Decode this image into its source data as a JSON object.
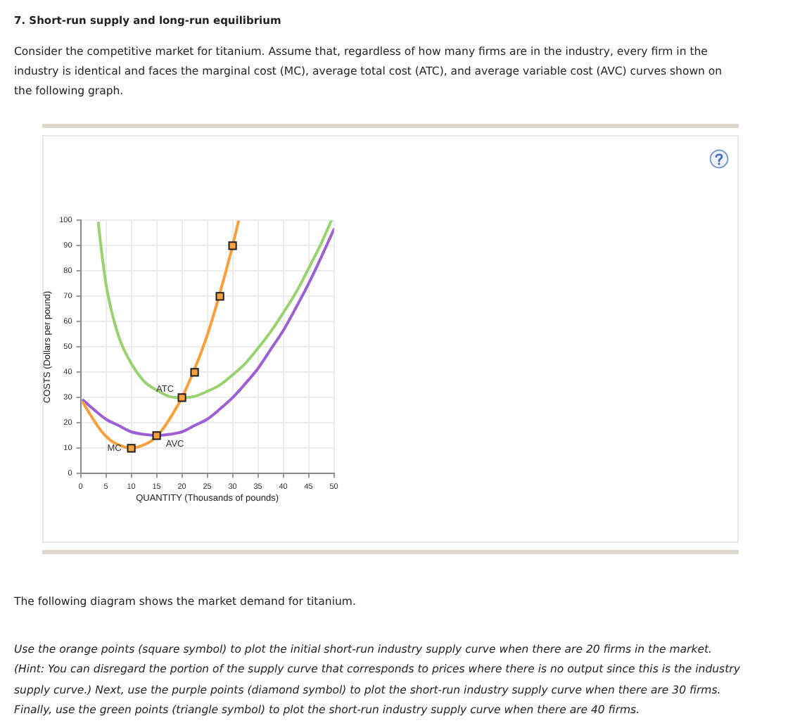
{
  "chart_data": {
    "type": "line",
    "title": "7. Short-run supply and long-run equilibrium",
    "subtitle": "Consider the competitive market for titanium. Assume that, regardless of how many firms are in the industry, every firm in the industry is identical and faces the marginal cost (MC), average total cost (ATC), and average variable cost (AVC) curves shown on the following graph.",
    "xlabel": "QUANTITY (Thousands of pounds)",
    "ylabel": "COSTS (Dollars per pound)",
    "annotations": [
      "The following diagram shows the market demand for titanium.",
      "Use the orange points (square symbol) to plot the initial short-run industry supply curve when there are 20 firms in the market. (Hint: You can disregard the portion of the supply curve that corresponds to prices where there is no output since this is the industry supply curve.) Next, use the purple points (diamond symbol) to plot the short-run industry supply curve when there are 30 firms. Finally, use the green points (triangle symbol) to plot the short-run industry supply curve when there are 40 firms."
    ],
    "xlim": [
      0,
      50
    ],
    "ylim": [
      0,
      100
    ],
    "xticks": [
      0,
      5,
      10,
      15,
      20,
      25,
      30,
      35,
      40,
      45,
      50
    ],
    "yticks": [
      0,
      10,
      20,
      30,
      40,
      50,
      60,
      70,
      80,
      90,
      100
    ],
    "grid": true,
    "series": [
      {
        "name": "ATC",
        "color": "#99d36f",
        "x": [
          3.5,
          4,
          5,
          6,
          7,
          8,
          10,
          12.5,
          15,
          17.5,
          20,
          22.5,
          25,
          27.5,
          30,
          32.5,
          35,
          37.5,
          40,
          42.5,
          45,
          47.5,
          49.5
        ],
        "values": [
          99,
          90,
          75,
          65,
          57.5,
          51.5,
          43.5,
          36.5,
          33,
          30.5,
          30,
          30.5,
          32.5,
          35,
          39,
          43.5,
          49.5,
          56,
          63.5,
          71.5,
          81,
          91,
          100
        ]
      },
      {
        "name": "AVC",
        "color": "#9c5fd6",
        "x": [
          0.5,
          2.5,
          5,
          7.5,
          10,
          12.5,
          15,
          17.5,
          20,
          22.5,
          25,
          27.5,
          30,
          32.5,
          35,
          37.5,
          40,
          42.5,
          45,
          47.5,
          50
        ],
        "values": [
          29,
          25.5,
          21.5,
          19,
          16.5,
          15.5,
          15,
          15.5,
          16.5,
          19,
          21.5,
          25.5,
          30,
          35.5,
          41.5,
          49,
          56.5,
          65.5,
          75,
          85.5,
          96.5
        ]
      },
      {
        "name": "MC",
        "color": "#f7a03c",
        "x": [
          0.5,
          2,
          4,
          6,
          8,
          10,
          12,
          14,
          16,
          18,
          20,
          22,
          24,
          26,
          28,
          30,
          31.2
        ],
        "values": [
          28,
          23,
          17,
          13,
          11,
          10,
          11,
          13,
          17,
          23,
          30,
          39,
          49,
          61,
          75,
          90,
          100
        ]
      },
      {
        "type": "scatter",
        "marker": "square",
        "color": "#f7a03c",
        "x": [
          10,
          15,
          20,
          22.5,
          27.5,
          30
        ],
        "values": [
          10,
          15,
          30,
          40,
          70,
          90
        ]
      }
    ]
  }
}
